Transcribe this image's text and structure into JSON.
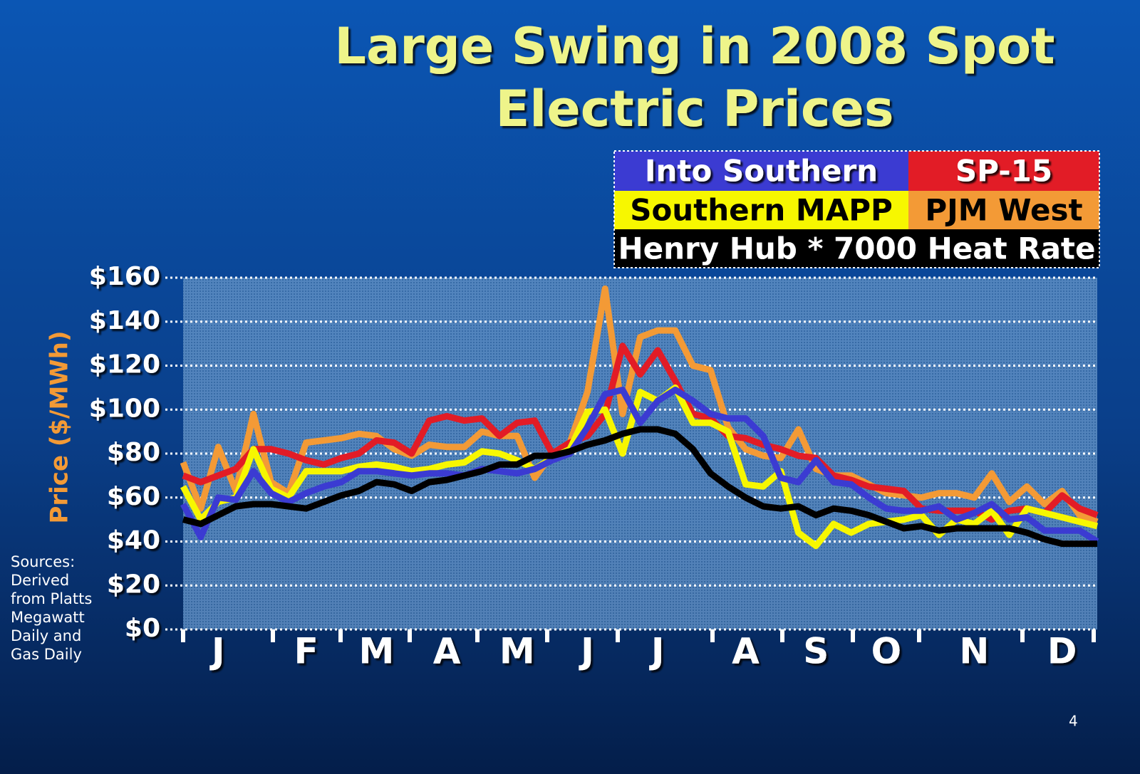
{
  "chart_data": {
    "type": "line",
    "title": [
      "Large Swing in 2008 Spot",
      "Electric Prices"
    ],
    "y_label": "Price ($/MWh)",
    "annotation": [
      "Sources:",
      "Derived",
      "from Platts",
      "Megawatt",
      "Daily and",
      "Gas Daily"
    ],
    "page_number": "4",
    "categories": [
      null,
      null,
      "J",
      null,
      null,
      null,
      null,
      "F",
      null,
      null,
      null,
      "M",
      null,
      null,
      null,
      "A",
      null,
      null,
      null,
      "M",
      null,
      null,
      null,
      "J",
      null,
      null,
      null,
      "J",
      null,
      null,
      null,
      null,
      "A",
      null,
      null,
      null,
      "S",
      null,
      null,
      null,
      "O",
      null,
      null,
      null,
      null,
      "N",
      null,
      null,
      null,
      null,
      "D",
      null,
      null
    ],
    "ylim": [
      0,
      160
    ],
    "yticks": [
      {
        "value": 0,
        "label": "$0"
      },
      {
        "value": 20,
        "label": "$20"
      },
      {
        "value": 40,
        "label": "$40"
      },
      {
        "value": 60,
        "label": "$60"
      },
      {
        "value": 80,
        "label": "$80"
      },
      {
        "value": 100,
        "label": "$100"
      },
      {
        "value": 120,
        "label": "$120"
      },
      {
        "value": 140,
        "label": "$140"
      },
      {
        "value": 160,
        "label": "$160"
      }
    ],
    "grid": true,
    "legend": "top-right",
    "series": [
      {
        "name": "Into Southern",
        "color": "#3b3bd2",
        "values": [
          57,
          42,
          60,
          59,
          72,
          62,
          58,
          62,
          65,
          67,
          72,
          72,
          71,
          70,
          71,
          71,
          70,
          73,
          72,
          71,
          73,
          77,
          80,
          92,
          107,
          109,
          94,
          104,
          109,
          104,
          98,
          96,
          96,
          88,
          69,
          67,
          77,
          67,
          66,
          60,
          55,
          54,
          54,
          56,
          50,
          53,
          57,
          50,
          51,
          45,
          45,
          45,
          40
        ]
      },
      {
        "name": "SP-15",
        "color": "#e21c26",
        "values": [
          70,
          67,
          70,
          73,
          82,
          82,
          80,
          77,
          75,
          78,
          80,
          86,
          85,
          80,
          95,
          97,
          95,
          96,
          88,
          94,
          95,
          80,
          85,
          88,
          98,
          129,
          116,
          127,
          113,
          98,
          96,
          88,
          87,
          84,
          82,
          79,
          78,
          70,
          68,
          65,
          64,
          63,
          55,
          54,
          54,
          54,
          50,
          54,
          55,
          53,
          61,
          55,
          52
        ]
      },
      {
        "name": "Southern MAPP",
        "color": "#f7f700",
        "values": [
          65,
          50,
          58,
          60,
          82,
          64,
          60,
          72,
          72,
          72,
          74,
          75,
          74,
          72,
          73,
          75,
          76,
          81,
          80,
          77,
          73,
          78,
          82,
          99,
          100,
          80,
          108,
          104,
          110,
          94,
          94,
          90,
          66,
          65,
          72,
          44,
          38,
          48,
          44,
          48,
          49,
          50,
          52,
          43,
          50,
          48,
          54,
          43,
          55,
          53,
          51,
          49,
          47
        ]
      },
      {
        "name": "PJM West",
        "color": "#f39a36",
        "values": [
          76,
          55,
          83,
          63,
          98,
          67,
          62,
          85,
          86,
          87,
          89,
          88,
          82,
          79,
          84,
          83,
          83,
          90,
          88,
          88,
          69,
          80,
          85,
          108,
          155,
          98,
          133,
          136,
          136,
          120,
          118,
          92,
          82,
          79,
          78,
          91,
          73,
          70,
          70,
          66,
          62,
          61,
          60,
          62,
          62,
          60,
          71,
          58,
          65,
          57,
          63,
          52,
          49
        ]
      },
      {
        "name": "Henry Hub * 7000 Heat Rate",
        "color": "#000000",
        "values": [
          50,
          48,
          52,
          56,
          57,
          57,
          56,
          55,
          58,
          61,
          63,
          67,
          66,
          63,
          67,
          68,
          70,
          72,
          75,
          75,
          79,
          79,
          81,
          84,
          86,
          89,
          91,
          91,
          89,
          82,
          71,
          65,
          60,
          56,
          55,
          56,
          52,
          55,
          54,
          52,
          49,
          46,
          47,
          45,
          46,
          46,
          46,
          46,
          44,
          41,
          39,
          39,
          39
        ]
      }
    ]
  }
}
